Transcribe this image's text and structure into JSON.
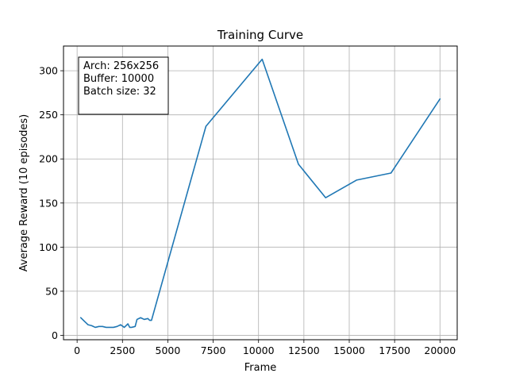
{
  "chart_data": {
    "type": "line",
    "title": "Training Curve",
    "xlabel": "Frame",
    "ylabel": "Average Reward (10 episodes)",
    "xlim": [
      -750,
      20950
    ],
    "ylim": [
      -5,
      328
    ],
    "xticks": [
      0,
      2500,
      5000,
      7500,
      10000,
      12500,
      15000,
      17500,
      20000
    ],
    "yticks": [
      0,
      50,
      100,
      150,
      200,
      250,
      300
    ],
    "grid": true,
    "line_color": "#1f77b4",
    "series": [
      {
        "x": [
          200,
          400,
          600,
          800,
          1000,
          1200,
          1400,
          1600,
          1800,
          2000,
          2200,
          2400,
          2600,
          2800,
          2900,
          3000,
          3200,
          3300,
          3500,
          3700,
          3900,
          4000,
          4100,
          7100,
          10200,
          12200,
          13700,
          15400,
          17300,
          20000
        ],
        "y": [
          20,
          16,
          12,
          11,
          9,
          10,
          10,
          9,
          9,
          9,
          10,
          12,
          9,
          13,
          9,
          9,
          10,
          18,
          20,
          18,
          19,
          17,
          17,
          237,
          313,
          194,
          156,
          176,
          184,
          268
        ]
      }
    ],
    "annotation": {
      "lines": [
        "Arch: 256x256",
        "Buffer: 10000",
        "Batch size: 32"
      ]
    }
  }
}
